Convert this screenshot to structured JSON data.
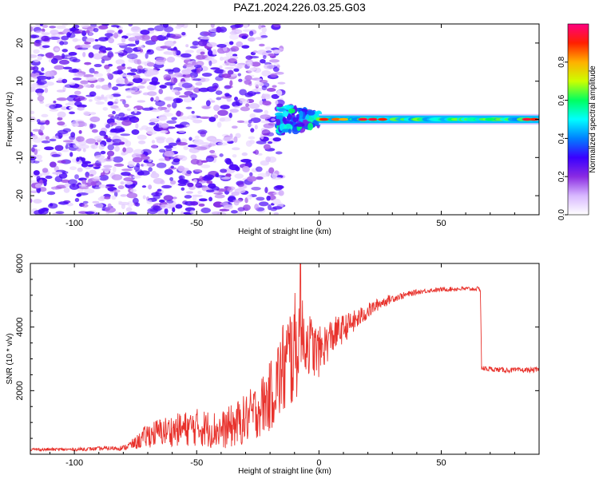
{
  "figure_title": "PAZ1.2024.226.03.25.G03",
  "chart_data": [
    {
      "type": "heatmap",
      "title": "PAZ1.2024.226.03.25.G03",
      "xlabel": "Height of straight line (km)",
      "ylabel": "Frequency (Hz)",
      "xlim": [
        -118,
        90
      ],
      "ylim": [
        -25,
        25
      ],
      "xticks": [
        -100,
        -50,
        0,
        50
      ],
      "yticks": [
        -20,
        -10,
        0,
        10,
        20
      ],
      "colorbar": {
        "label": "Normalized spectral amplitude",
        "range": [
          0.0,
          1.0
        ],
        "ticks": [
          0.0,
          0.2,
          0.4,
          0.6,
          0.8
        ],
        "colormap": [
          "#ffffff",
          "#d8b8ff",
          "#8a2be2",
          "#3a00ff",
          "#0080ff",
          "#00ffff",
          "#00ff60",
          "#ccff00",
          "#ffb000",
          "#ff2000",
          "#ff0080"
        ]
      },
      "regions": [
        {
          "x_range": [
            -118,
            -15
          ],
          "freq_range": [
            -25,
            25
          ],
          "amplitude": [
            0.05,
            0.25
          ],
          "pattern": "noise"
        },
        {
          "x_range": [
            -17,
            0
          ],
          "freq_range": [
            -4,
            4
          ],
          "amplitude": [
            0.2,
            0.6
          ],
          "pattern": "wandering"
        },
        {
          "x_range": [
            0,
            90
          ],
          "freq_range": [
            -1,
            1
          ],
          "amplitude": [
            0.4,
            0.95
          ],
          "pattern": "line"
        }
      ]
    },
    {
      "type": "line",
      "xlabel": "Height of straight line (km)",
      "ylabel": "SNR (10 * v/v)",
      "xlim": [
        -118,
        90
      ],
      "ylim": [
        0,
        6000
      ],
      "xticks": [
        -100,
        -50,
        0,
        50
      ],
      "yticks": [
        2000,
        4000,
        6000
      ],
      "color": "#e8322c",
      "series": [
        {
          "x": [
            -118,
            -100,
            -80,
            -75,
            -70,
            -65,
            -60,
            -55,
            -50,
            -45,
            -40,
            -35,
            -30,
            -25,
            -20,
            -17,
            -15,
            -12,
            -10,
            -8,
            -6,
            -4,
            -2,
            0,
            2,
            5,
            10,
            15,
            20,
            25,
            30,
            35,
            40,
            45,
            50,
            55,
            60,
            65,
            66,
            66.5,
            67,
            70,
            75,
            80,
            85,
            90
          ],
          "y": [
            150,
            150,
            200,
            350,
            600,
            700,
            750,
            800,
            850,
            800,
            750,
            900,
            1100,
            1400,
            1800,
            2300,
            2600,
            3000,
            3300,
            3500,
            3600,
            3500,
            3300,
            3200,
            3400,
            3700,
            3950,
            4200,
            4500,
            4750,
            4900,
            5000,
            5100,
            5150,
            5180,
            5200,
            5200,
            5200,
            5200,
            2700,
            2700,
            2680,
            2650,
            2640,
            2650,
            2650
          ],
          "noise_amp": [
            50,
            50,
            80,
            200,
            400,
            450,
            500,
            550,
            600,
            600,
            600,
            700,
            800,
            900,
            1100,
            1300,
            1600,
            1800,
            1800,
            1500,
            1200,
            1000,
            900,
            800,
            700,
            600,
            450,
            350,
            250,
            180,
            130,
            100,
            80,
            70,
            70,
            70,
            70,
            70,
            70,
            80,
            80,
            80,
            80,
            80,
            80,
            80
          ]
        }
      ]
    }
  ]
}
